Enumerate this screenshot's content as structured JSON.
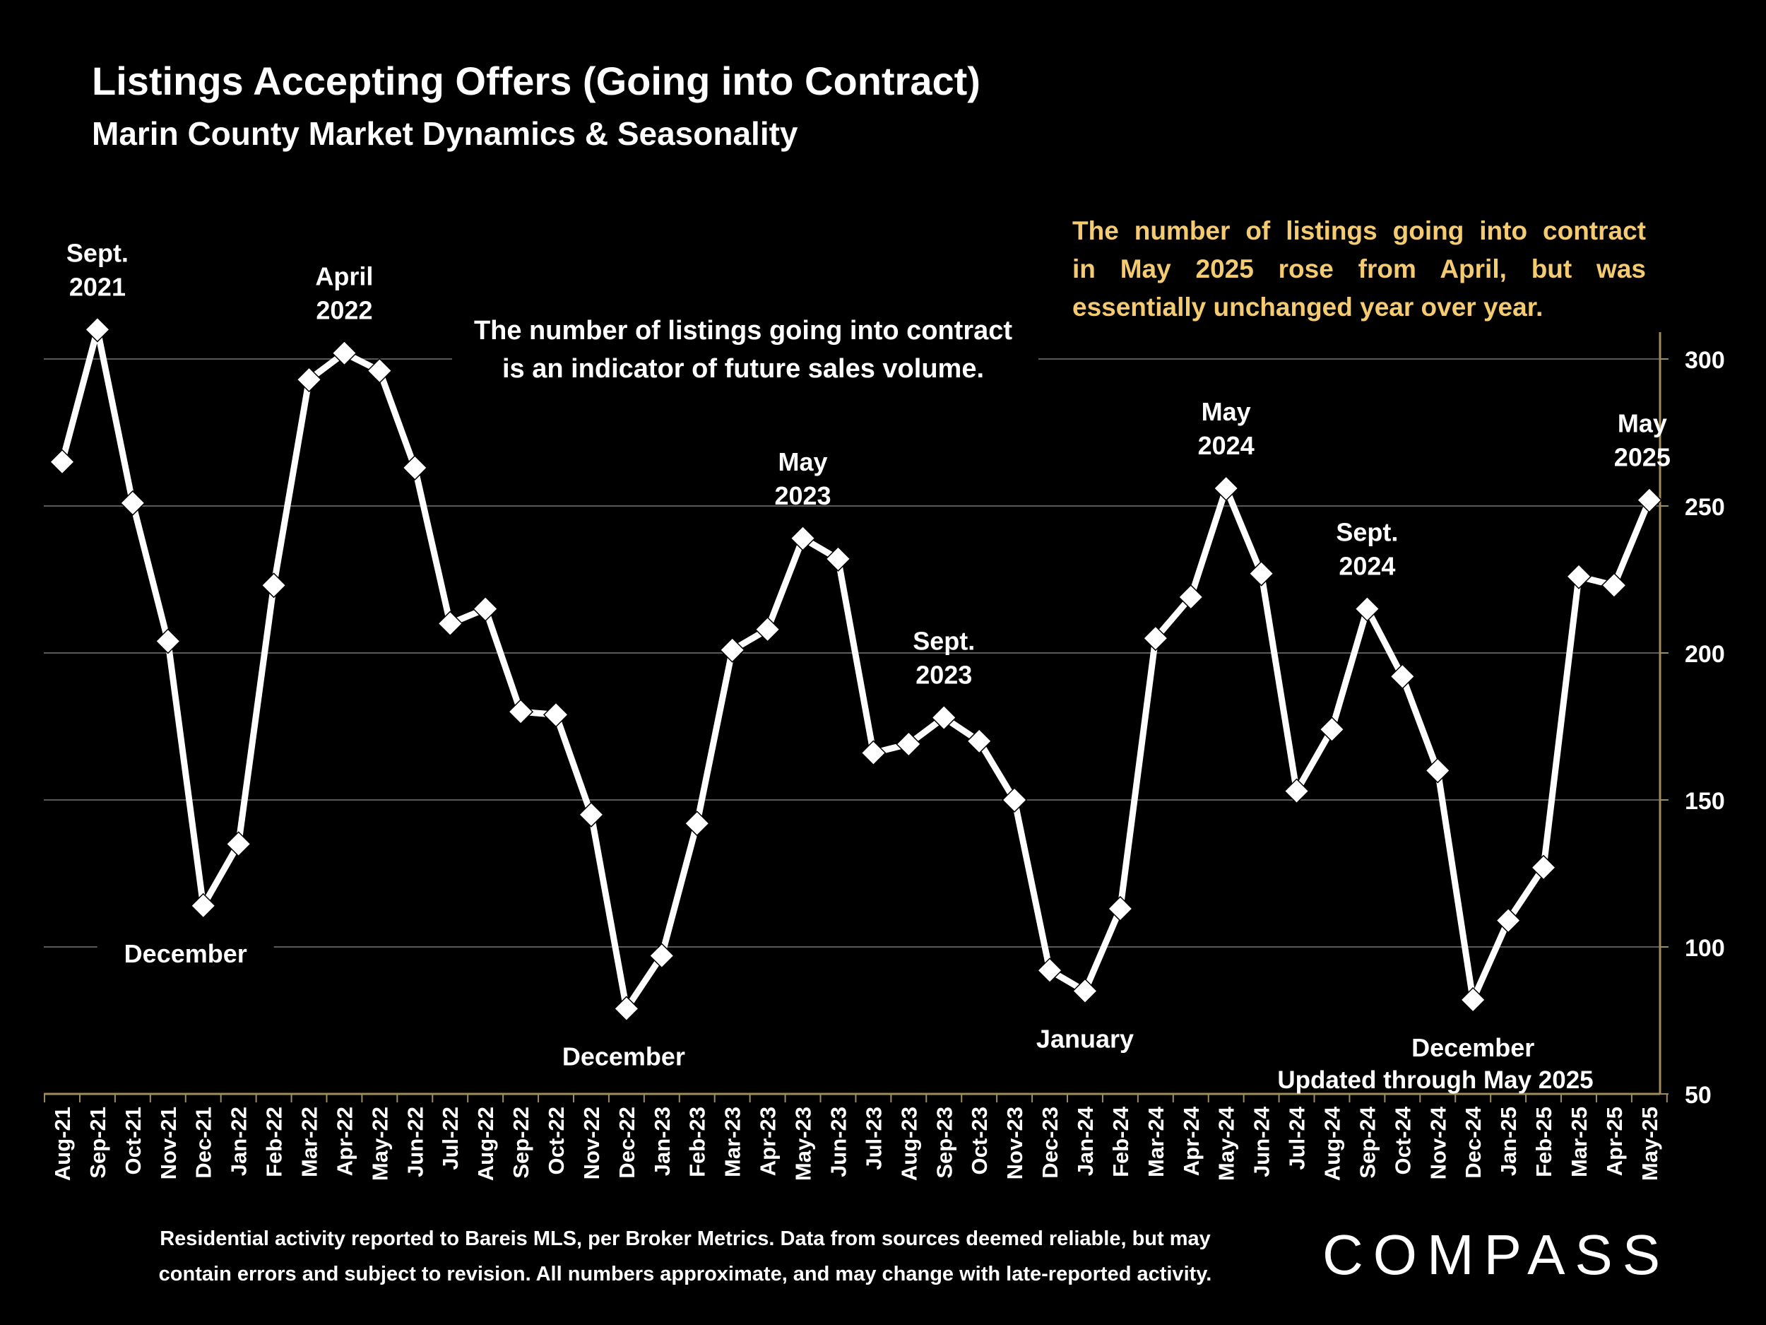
{
  "title": "Listings Accepting Offers (Going into Contract)",
  "subtitle": "Marin County Market Dynamics & Seasonality",
  "note_gold_lines": [
    "The number of listings going into contract",
    "in May 2025 rose from April, but was",
    "essentially unchanged year over year."
  ],
  "note_white_lines": [
    "The number of listings going into contract",
    "is an indicator of future sales volume."
  ],
  "updated": "Updated through May 2025",
  "footer_lines": [
    "Residential activity reported to Bareis MLS, per Broker Metrics. Data from sources deemed reliable, but may",
    "contain errors and subject to revision. All numbers approximate, and may change with late-reported activity."
  ],
  "logo_text": "COMPASS",
  "colors": {
    "background": "#000000",
    "line": "#ffffff",
    "gold": "#f5cb72",
    "grid": "#595959",
    "axis": "#a08c5a"
  },
  "chart_data": {
    "type": "line",
    "categories": [
      "Aug-21",
      "Sep-21",
      "Oct-21",
      "Nov-21",
      "Dec-21",
      "Jan-22",
      "Feb-22",
      "Mar-22",
      "Apr-22",
      "May-22",
      "Jun-22",
      "Jul-22",
      "Aug-22",
      "Sep-22",
      "Oct-22",
      "Nov-22",
      "Dec-22",
      "Jan-23",
      "Feb-23",
      "Mar-23",
      "Apr-23",
      "May-23",
      "Jun-23",
      "Jul-23",
      "Aug-23",
      "Sep-23",
      "Oct-23",
      "Nov-23",
      "Dec-23",
      "Jan-24",
      "Feb-24",
      "Mar-24",
      "Apr-24",
      "May-24",
      "Jun-24",
      "Jul-24",
      "Aug-24",
      "Sep-24",
      "Oct-24",
      "Nov-24",
      "Dec-24",
      "Jan-25",
      "Feb-25",
      "Mar-25",
      "Apr-25",
      "May-25"
    ],
    "values": [
      265,
      310,
      251,
      204,
      114,
      135,
      223,
      293,
      302,
      296,
      263,
      210,
      215,
      180,
      179,
      145,
      79,
      97,
      142,
      201,
      208,
      239,
      232,
      166,
      169,
      178,
      170,
      150,
      92,
      85,
      113,
      205,
      219,
      256,
      227,
      153,
      174,
      215,
      192,
      160,
      82,
      109,
      127,
      226,
      223,
      252
    ],
    "ylim": [
      50,
      310
    ],
    "yticks": [
      50,
      100,
      150,
      200,
      250,
      300
    ],
    "y_axis_side": "right",
    "grid": true,
    "annotations": [
      {
        "lines": [
          "Sept.",
          "2021"
        ],
        "category": "Sep-21",
        "position": "above"
      },
      {
        "lines": [
          "April",
          "2022"
        ],
        "category": "Apr-22",
        "position": "above"
      },
      {
        "lines": [
          "December"
        ],
        "category": "Dec-21",
        "position": "below"
      },
      {
        "lines": [
          "December"
        ],
        "category": "Dec-22",
        "position": "below"
      },
      {
        "lines": [
          "May",
          "2023"
        ],
        "category": "May-23",
        "position": "above"
      },
      {
        "lines": [
          "Sept.",
          "2023"
        ],
        "category": "Sep-23",
        "position": "above"
      },
      {
        "lines": [
          "January"
        ],
        "category": "Jan-24",
        "position": "below"
      },
      {
        "lines": [
          "May",
          "2024"
        ],
        "category": "May-24",
        "position": "above"
      },
      {
        "lines": [
          "Sept.",
          "2024"
        ],
        "category": "Sep-24",
        "position": "above"
      },
      {
        "lines": [
          "December"
        ],
        "category": "Dec-24",
        "position": "below"
      },
      {
        "lines": [
          "May",
          "2025"
        ],
        "category": "May-25",
        "position": "above"
      }
    ]
  }
}
